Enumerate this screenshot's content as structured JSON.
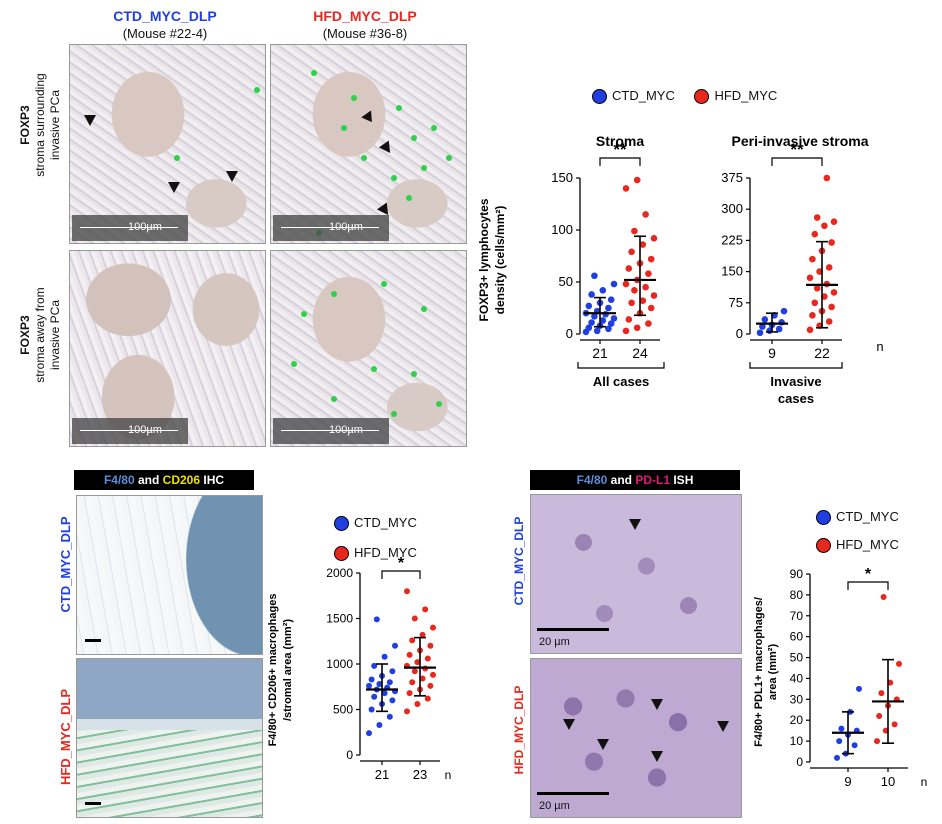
{
  "colors": {
    "ctd": "#1f3fe0",
    "hfd": "#e8281e",
    "pdl1": "#e3177a",
    "f480": "#5b8ed6",
    "cd206": "#f0e000"
  },
  "panelA": {
    "col1_title": "CTD_MYC_DLP",
    "col1_sub": "(Mouse #22-4)",
    "col2_title": "HFD_MYC_DLP",
    "col2_sub": "(Mouse #36-8)",
    "row1_bold": "FOXP3",
    "row1_line1": "stroma surrounding",
    "row1_line2": "invasive PCa",
    "row2_bold": "FOXP3",
    "row2_line1": "stroma away from",
    "row2_line2": "invasive PCa",
    "scale": "100µm"
  },
  "panelB": {
    "title": "F4/80 and CD206 IHC",
    "title_parts": [
      "F4/80",
      " and ",
      "CD206",
      " IHC"
    ],
    "row1_label": "CTD_MYC_DLP",
    "row2_label": "HFD_MYC_DLP"
  },
  "panelC": {
    "title_parts": [
      "F4/80",
      " and ",
      "PD-L1",
      " ISH"
    ],
    "row1_label": "CTD_MYC_DLP",
    "row2_label": "HFD_MYC_DLP",
    "scale": "20 µm"
  },
  "legend": {
    "ctd": "CTD_MYC",
    "hfd": "HFD_MYC"
  },
  "chart_data": [
    {
      "type": "scatter",
      "title": "Stroma",
      "ylabel_line1": "FOXP3+ lymphocytes",
      "ylabel_line2": "density (cells/mm²)",
      "ylim": [
        0,
        150
      ],
      "yticks": [
        "0",
        "50",
        "100",
        "150"
      ],
      "ytick_values": [
        0,
        50,
        100,
        150
      ],
      "group_label": "All cases",
      "significance": "**",
      "series": [
        {
          "name": "CTD_MYC",
          "n": "21",
          "mean": 20,
          "sd_low": 7,
          "sd_high": 35,
          "values": [
            2,
            3,
            5,
            6,
            8,
            10,
            11,
            13,
            15,
            17,
            19,
            20,
            22,
            25,
            27,
            30,
            33,
            38,
            42,
            48,
            56
          ]
        },
        {
          "name": "HFD_MYC",
          "n": "24",
          "mean": 52,
          "sd_low": 18,
          "sd_high": 94,
          "values": [
            3,
            6,
            10,
            14,
            20,
            25,
            30,
            32,
            37,
            42,
            45,
            48,
            52,
            58,
            63,
            68,
            72,
            79,
            86,
            92,
            99,
            115,
            140,
            148
          ]
        }
      ]
    },
    {
      "type": "scatter",
      "title": "Peri-invasive stroma",
      "ylim": [
        0,
        375
      ],
      "yticks": [
        "0",
        "75",
        "150",
        "225",
        "300",
        "375"
      ],
      "ytick_values": [
        0,
        75,
        150,
        225,
        300,
        375
      ],
      "group_label_line1": "Invasive",
      "group_label_line2": "cases",
      "significance": "**",
      "n_label": "n",
      "series": [
        {
          "name": "CTD_MYC",
          "n": "9",
          "mean": 25,
          "sd_low": 5,
          "sd_high": 50,
          "values": [
            3,
            8,
            12,
            18,
            22,
            28,
            35,
            45,
            55
          ]
        },
        {
          "name": "HFD_MYC",
          "n": "22",
          "mean": 118,
          "sd_low": 15,
          "sd_high": 222,
          "values": [
            10,
            20,
            30,
            45,
            55,
            65,
            75,
            90,
            100,
            110,
            120,
            135,
            150,
            160,
            180,
            200,
            220,
            240,
            260,
            270,
            280,
            375
          ]
        }
      ]
    },
    {
      "type": "scatter",
      "ylabel_line1": "F4/80+ CD206+ macrophages",
      "ylabel_line2": "/stromal area (mm²)",
      "ylim": [
        0,
        2000
      ],
      "yticks": [
        "0",
        "500",
        "1000",
        "1500",
        "2000"
      ],
      "ytick_values": [
        0,
        500,
        1000,
        1500,
        2000
      ],
      "significance": "*",
      "n_label": "n",
      "series": [
        {
          "name": "CTD_MYC",
          "n": "21",
          "mean": 720,
          "sd_low": 480,
          "sd_high": 1000,
          "values": [
            240,
            330,
            420,
            500,
            560,
            600,
            640,
            680,
            700,
            720,
            740,
            760,
            780,
            800,
            830,
            870,
            920,
            980,
            1080,
            1200,
            1490
          ]
        },
        {
          "name": "HFD_MYC",
          "n": "23",
          "mean": 960,
          "sd_low": 650,
          "sd_high": 1290,
          "values": [
            480,
            560,
            620,
            680,
            720,
            760,
            800,
            840,
            880,
            920,
            950,
            980,
            1020,
            1060,
            1100,
            1150,
            1200,
            1260,
            1320,
            1400,
            1500,
            1600,
            1800
          ]
        }
      ]
    },
    {
      "type": "scatter",
      "ylabel_line1": "F4/80+ PDL1+ macrophages/",
      "ylabel_line2": "area (mm²)",
      "ylim": [
        0,
        90
      ],
      "yticks": [
        "0",
        "10",
        "20",
        "30",
        "40",
        "50",
        "60",
        "70",
        "80",
        "90"
      ],
      "ytick_values": [
        0,
        10,
        20,
        30,
        40,
        50,
        60,
        70,
        80,
        90
      ],
      "significance": "*",
      "n_label": "n",
      "series": [
        {
          "name": "CTD_MYC",
          "n": "9",
          "mean": 14,
          "sd_low": 4,
          "sd_high": 24,
          "values": [
            2,
            4,
            8,
            10,
            13,
            15,
            16,
            24,
            35
          ]
        },
        {
          "name": "HFD_MYC",
          "n": "10",
          "mean": 29,
          "sd_low": 9,
          "sd_high": 49,
          "values": [
            10,
            15,
            18,
            22,
            27,
            30,
            33,
            38,
            47,
            79
          ]
        }
      ]
    }
  ]
}
